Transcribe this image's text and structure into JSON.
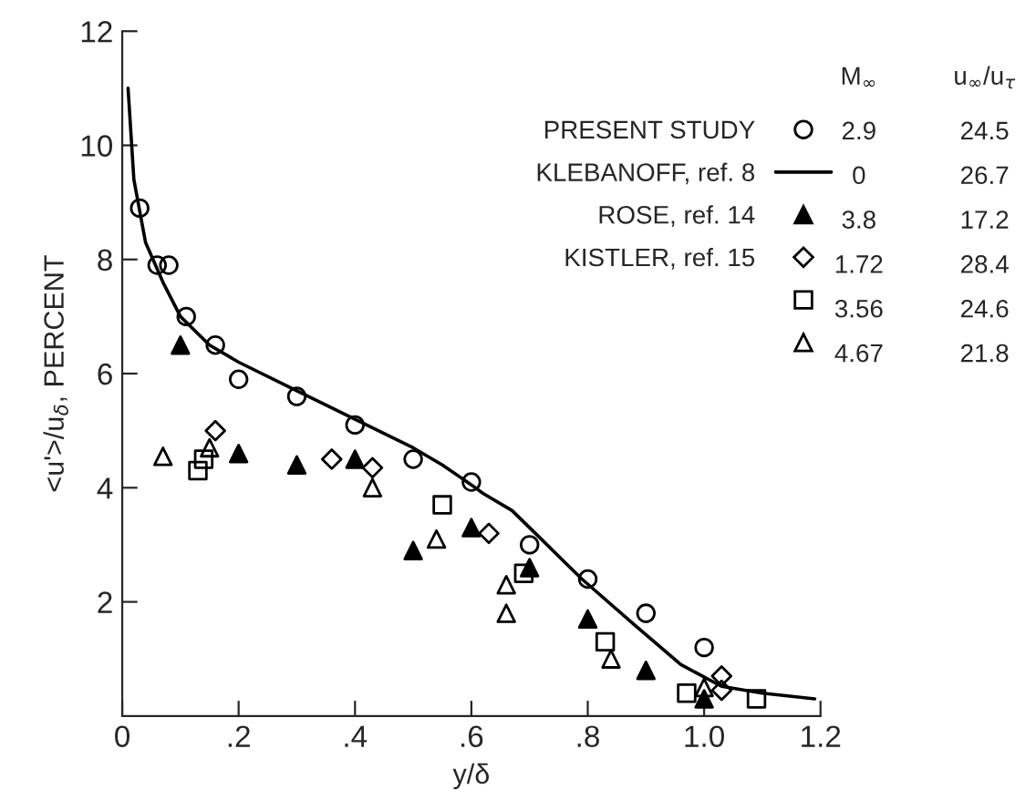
{
  "chart_data": {
    "type": "scatter",
    "xlabel": "y/δ",
    "ylabel": "<u'>/u$_{δ}$, PERCENT",
    "xlim": [
      0,
      1.2
    ],
    "ylim": [
      0,
      12
    ],
    "xticks": [
      {
        "value": 0,
        "label": "0"
      },
      {
        "value": 0.2,
        "label": ".2"
      },
      {
        "value": 0.4,
        "label": ".4"
      },
      {
        "value": 0.6,
        "label": ".6"
      },
      {
        "value": 0.8,
        "label": ".8"
      },
      {
        "value": 1.0,
        "label": "1.0"
      },
      {
        "value": 1.2,
        "label": "1.2"
      }
    ],
    "yticks": [
      2,
      4,
      6,
      8,
      10,
      12
    ],
    "grid": false,
    "legend": "top right",
    "annotations": [
      "M$_{∞}$",
      "u$_{∞}$/u$_{τ}$",
      "2.9",
      "24.5",
      "0",
      "26.7",
      "3.8",
      "17.2",
      "1.72",
      "28.4",
      "3.56",
      "24.6",
      "4.67",
      "21.8"
    ],
    "series": [
      {
        "name": "PRESENT STUDY",
        "color": "#000000",
        "marker": "circle",
        "x": [
          0.03,
          0.06,
          0.08,
          0.11,
          0.16,
          0.2,
          0.3,
          0.4,
          0.5,
          0.6,
          0.7,
          0.8,
          0.9,
          1.0
        ],
        "values": [
          8.9,
          7.9,
          7.9,
          7.0,
          6.5,
          5.9,
          5.6,
          5.1,
          4.5,
          4.1,
          3.0,
          2.4,
          1.8,
          1.2
        ]
      },
      {
        "name": "KLEBANOFF, ref. 8",
        "type": "line",
        "color": "#000000",
        "marker": "none",
        "line_style": "solid",
        "x": [
          0.01,
          0.02,
          0.04,
          0.07,
          0.1,
          0.15,
          0.2,
          0.3,
          0.4,
          0.5,
          0.55,
          0.6,
          0.62,
          0.67,
          0.71,
          0.76,
          0.79,
          0.88,
          0.96,
          1.03,
          1.1,
          1.19
        ],
        "values": [
          11.0,
          9.4,
          8.3,
          7.6,
          7.0,
          6.5,
          6.2,
          5.7,
          5.2,
          4.7,
          4.4,
          4.05,
          3.9,
          3.6,
          3.2,
          2.7,
          2.4,
          1.6,
          0.9,
          0.52,
          0.4,
          0.3
        ]
      },
      {
        "name": "ROSE, ref. 14",
        "color": "#000000",
        "marker": "triangle",
        "x": [
          0.1,
          0.2,
          0.3,
          0.4,
          0.5,
          0.6,
          0.7,
          0.8,
          0.9,
          1.0
        ],
        "values": [
          6.5,
          4.6,
          4.4,
          4.5,
          2.9,
          3.3,
          2.6,
          1.7,
          0.8,
          0.3
        ]
      },
      {
        "name": "KISTLER, ref. 15",
        "color": "#000000",
        "marker": "diamond",
        "x": [
          0.16,
          0.36,
          0.43,
          0.63,
          1.03,
          1.03
        ],
        "values": [
          5.0,
          4.5,
          4.35,
          3.2,
          0.7,
          0.45
        ]
      },
      {
        "color": "#000000",
        "marker": "square",
        "x": [
          0.13,
          0.14,
          0.55,
          0.69,
          0.83,
          0.97,
          1.09
        ],
        "values": [
          4.3,
          4.5,
          3.7,
          2.5,
          1.3,
          0.4,
          0.3
        ]
      },
      {
        "color": "#000000",
        "marker": "triangle",
        "x": [
          0.07,
          0.15,
          0.43,
          0.54,
          0.66,
          0.66,
          0.84,
          1.0
        ],
        "values": [
          4.55,
          4.7,
          4.0,
          3.1,
          2.3,
          1.8,
          1.0,
          0.5
        ]
      }
    ]
  }
}
